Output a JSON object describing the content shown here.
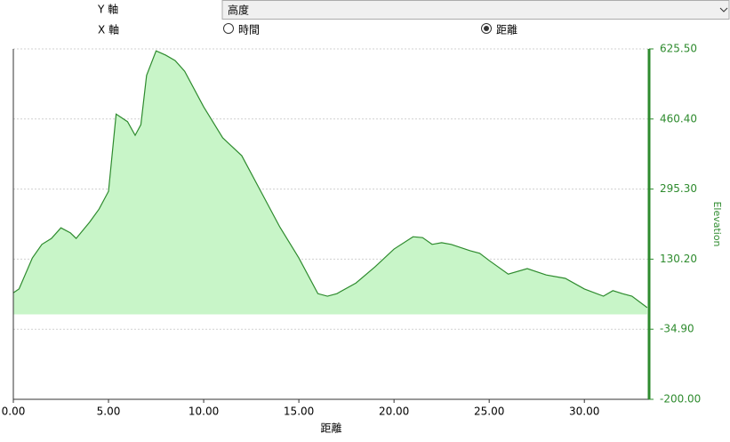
{
  "controls": {
    "y_axis_label": "Y 軸",
    "y_axis_value": "高度",
    "x_axis_label": "X 軸",
    "x_options": [
      "時間",
      "距離"
    ],
    "x_selected": 1
  },
  "chart_data": {
    "type": "area",
    "xlabel": "距離",
    "ylabel": "Elevation",
    "color": "#2e8b2e",
    "fill": "#c8f5c8",
    "x": [
      0,
      0.3,
      1,
      1.5,
      2,
      2.5,
      3,
      3.3,
      4,
      4.5,
      5,
      5.4,
      6,
      6.4,
      6.7,
      7,
      7.5,
      8,
      8.5,
      9,
      10,
      11,
      12,
      13,
      14,
      15,
      16,
      16.5,
      17,
      18,
      19,
      20,
      21,
      21.5,
      22,
      22.5,
      23,
      24,
      24.5,
      25,
      26,
      27,
      28,
      29,
      30,
      31,
      31.5,
      32,
      32.5,
      33.3
    ],
    "values": [
      51,
      60,
      133,
      165,
      179,
      204,
      192,
      179,
      217,
      248,
      290,
      472,
      454,
      422,
      447,
      563,
      621,
      611,
      598,
      573,
      489,
      416,
      374,
      290,
      206,
      133,
      49,
      43,
      49,
      74,
      112,
      154,
      183,
      181,
      165,
      169,
      165,
      150,
      144,
      127,
      95,
      108,
      93,
      85,
      60,
      43,
      56,
      49,
      43,
      16
    ],
    "xlim": [
      0,
      33.4
    ],
    "ylim": [
      -200,
      625.5
    ],
    "xticks": [
      {
        "value": 0,
        "label": "0.00"
      },
      {
        "value": 5,
        "label": "5.00"
      },
      {
        "value": 10,
        "label": "10.00"
      },
      {
        "value": 15,
        "label": "15.00"
      },
      {
        "value": 20,
        "label": "20.00"
      },
      {
        "value": 25,
        "label": "25.00"
      },
      {
        "value": 30,
        "label": "30.00"
      }
    ],
    "yticks": [
      {
        "value": -200,
        "label": "-200.00"
      },
      {
        "value": -34.9,
        "label": "-34.90"
      },
      {
        "value": 130.2,
        "label": "130.20"
      },
      {
        "value": 295.3,
        "label": "295.30"
      },
      {
        "value": 460.4,
        "label": "460.40"
      },
      {
        "value": 625.5,
        "label": "625.50"
      }
    ],
    "grid": true
  }
}
